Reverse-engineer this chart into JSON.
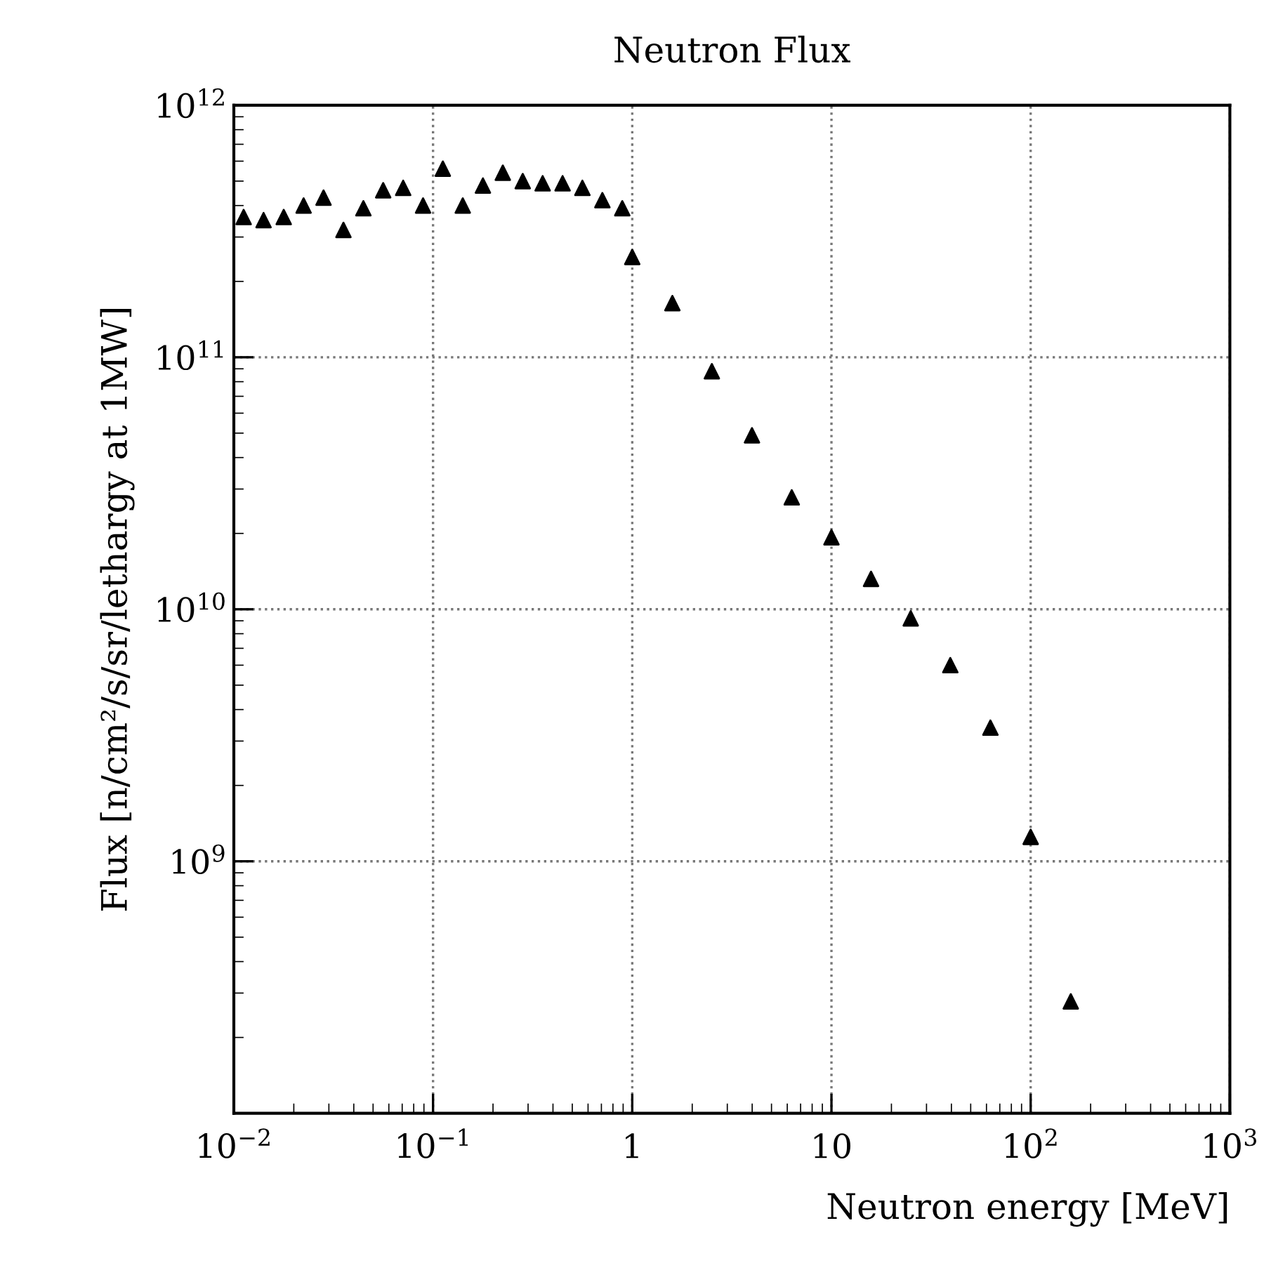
{
  "chart_data": {
    "type": "scatter",
    "title": "Neutron Flux",
    "xlabel": "Neutron energy [MeV]",
    "ylabel": "Flux [n/cm²/s/sr/lethargy at 1MW]",
    "log": "xy",
    "grid": true,
    "marker": "triangle",
    "xlim": [
      0.01,
      1000
    ],
    "ylim": [
      100000000.0,
      1000000000000.0
    ],
    "xticks": [
      {
        "value": 0.01,
        "label": "10$^{−2}$"
      },
      {
        "value": 0.1,
        "label": "10$^{−1}$"
      },
      1,
      10,
      {
        "value": 100,
        "label": "10$^{2}$"
      },
      {
        "value": 1000,
        "label": "10$^{3}$"
      }
    ],
    "yticks": [
      {
        "value": 1000000000.0,
        "label": "10$^{9}$"
      },
      {
        "value": 10000000000.0,
        "label": "10$^{10}$"
      },
      {
        "value": 100000000000.0,
        "label": "10$^{11}$"
      },
      {
        "value": 1000000000000.0,
        "label": "10$^{12}$"
      }
    ],
    "series": [
      {
        "color": "#000000",
        "x": [
          0.0112,
          0.0141,
          0.0178,
          0.0224,
          0.0282,
          0.0355,
          0.0447,
          0.0562,
          0.0708,
          0.0891,
          0.112,
          0.141,
          0.178,
          0.224,
          0.282,
          0.355,
          0.447,
          0.562,
          0.708,
          0.891,
          1.0,
          1.59,
          2.51,
          3.99,
          6.32,
          10,
          15.8,
          25,
          39.5,
          62.8,
          100,
          159
        ],
        "values": [
          360000000000.0,
          350000000000.0,
          360000000000.0,
          400000000000.0,
          430000000000.0,
          320000000000.0,
          390000000000.0,
          460000000000.0,
          470000000000.0,
          400000000000.0,
          560000000000.0,
          400000000000.0,
          480000000000.0,
          540000000000.0,
          500000000000.0,
          490000000000.0,
          490000000000.0,
          470000000000.0,
          420000000000.0,
          390000000000.0,
          250000000000.0,
          164000000000.0,
          88000000000.0,
          49000000000.0,
          27800000000.0,
          19300000000.0,
          13200000000.0,
          9200000000.0,
          6000000000.0,
          3390000000.0,
          1250000000.0,
          278000000.0
        ]
      }
    ]
  }
}
